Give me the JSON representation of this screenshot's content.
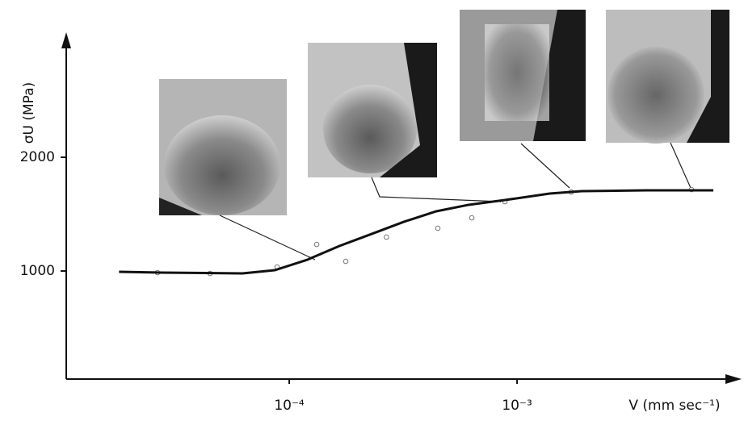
{
  "chart_data": {
    "type": "scatter",
    "x_label": "V (mm sec⁻¹)",
    "y_label": "σU (MPa)",
    "log_x": true,
    "xlim": [
      1.05e-05,
      0.00906
    ],
    "ylim": [
      50,
      3085
    ],
    "xticks": [
      {
        "value": 0.0001,
        "label": "10⁻⁴"
      },
      {
        "value": 0.001,
        "label": "10⁻³"
      }
    ],
    "yticks": [
      1000,
      2000
    ],
    "series": [
      {
        "type": "scatter",
        "color": "#777",
        "x": [
          2.64e-05,
          4.49e-05,
          8.85e-05,
          0.000132,
          0.000177,
          0.000267,
          0.000449,
          0.000633,
          0.000885,
          0.00173,
          0.00583
        ],
        "values": [
          986,
          979,
          1035,
          1234,
          1085,
          1298,
          1376,
          1468,
          1610,
          1695,
          1716
        ]
      },
      {
        "type": "line",
        "color": "#111",
        "x": [
          1.79e-05,
          2.75e-05,
          6.23e-05,
          8.64e-05,
          0.00012,
          0.000166,
          0.00023,
          0.000319,
          0.000442,
          0.000613,
          0.000885,
          0.00139,
          0.00192,
          0.00369,
          0.00727
        ],
        "values": [
          993,
          986,
          979,
          1007,
          1099,
          1220,
          1326,
          1433,
          1525,
          1582,
          1624,
          1681,
          1702,
          1709,
          1709
        ]
      }
    ]
  }
}
